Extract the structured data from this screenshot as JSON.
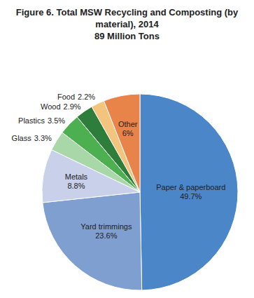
{
  "chart_data": {
    "type": "pie",
    "title": "Figure 6. Total MSW Recycling and Composting (by material), 2014",
    "subtitle": "89 Million Tons",
    "categories": [
      "Paper & paperboard",
      "Yard trimmings",
      "Metals",
      "Glass",
      "Plastics",
      "Wood",
      "Food",
      "Other"
    ],
    "values": [
      49.7,
      23.6,
      8.8,
      3.3,
      3.5,
      2.9,
      2.2,
      6
    ],
    "value_labels": [
      "49.7%",
      "23.6%",
      "8.8%",
      "3.3%",
      "3.5%",
      "2.9%",
      "2.2%",
      "6%"
    ],
    "colors": [
      "#4a86c8",
      "#7f9fd0",
      "#c8d0ea",
      "#a8d8a8",
      "#4caf50",
      "#2e7d3a",
      "#f2c47e",
      "#e8834a"
    ],
    "data_labels": true
  }
}
